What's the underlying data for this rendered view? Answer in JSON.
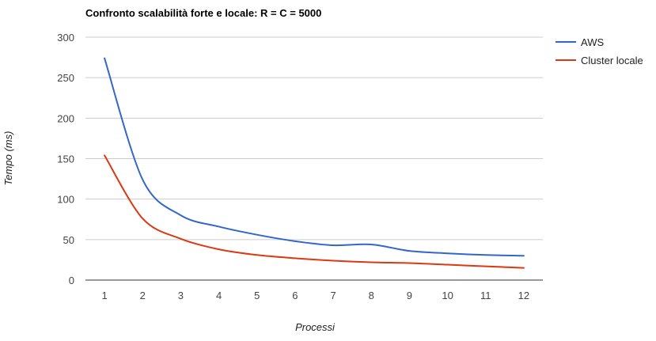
{
  "chart_data": {
    "type": "line",
    "title": "Confronto scalabilità forte e locale: R = C = 5000",
    "xlabel": "Processi",
    "ylabel": "Tempo (ms)",
    "x": [
      1,
      2,
      3,
      4,
      5,
      6,
      7,
      8,
      9,
      10,
      11,
      12
    ],
    "x_tick_labels": [
      "1",
      "2",
      "3",
      "4",
      "5",
      "6",
      "7",
      "8",
      "9",
      "10",
      "11",
      "12"
    ],
    "y_tick_labels": [
      "0",
      "50",
      "100",
      "150",
      "200",
      "250",
      "300"
    ],
    "ylim": [
      0,
      300
    ],
    "grid": true,
    "legend_position": "right",
    "series": [
      {
        "name": "AWS",
        "color": "#3366cc",
        "values": [
          274,
          124,
          80,
          66,
          56,
          48,
          43,
          44,
          36,
          33,
          31,
          30
        ]
      },
      {
        "name": "Cluster locale",
        "color": "#dc3912",
        "values": [
          154,
          76,
          51,
          38,
          31,
          27,
          24,
          22,
          21,
          19,
          17,
          15
        ]
      }
    ]
  }
}
